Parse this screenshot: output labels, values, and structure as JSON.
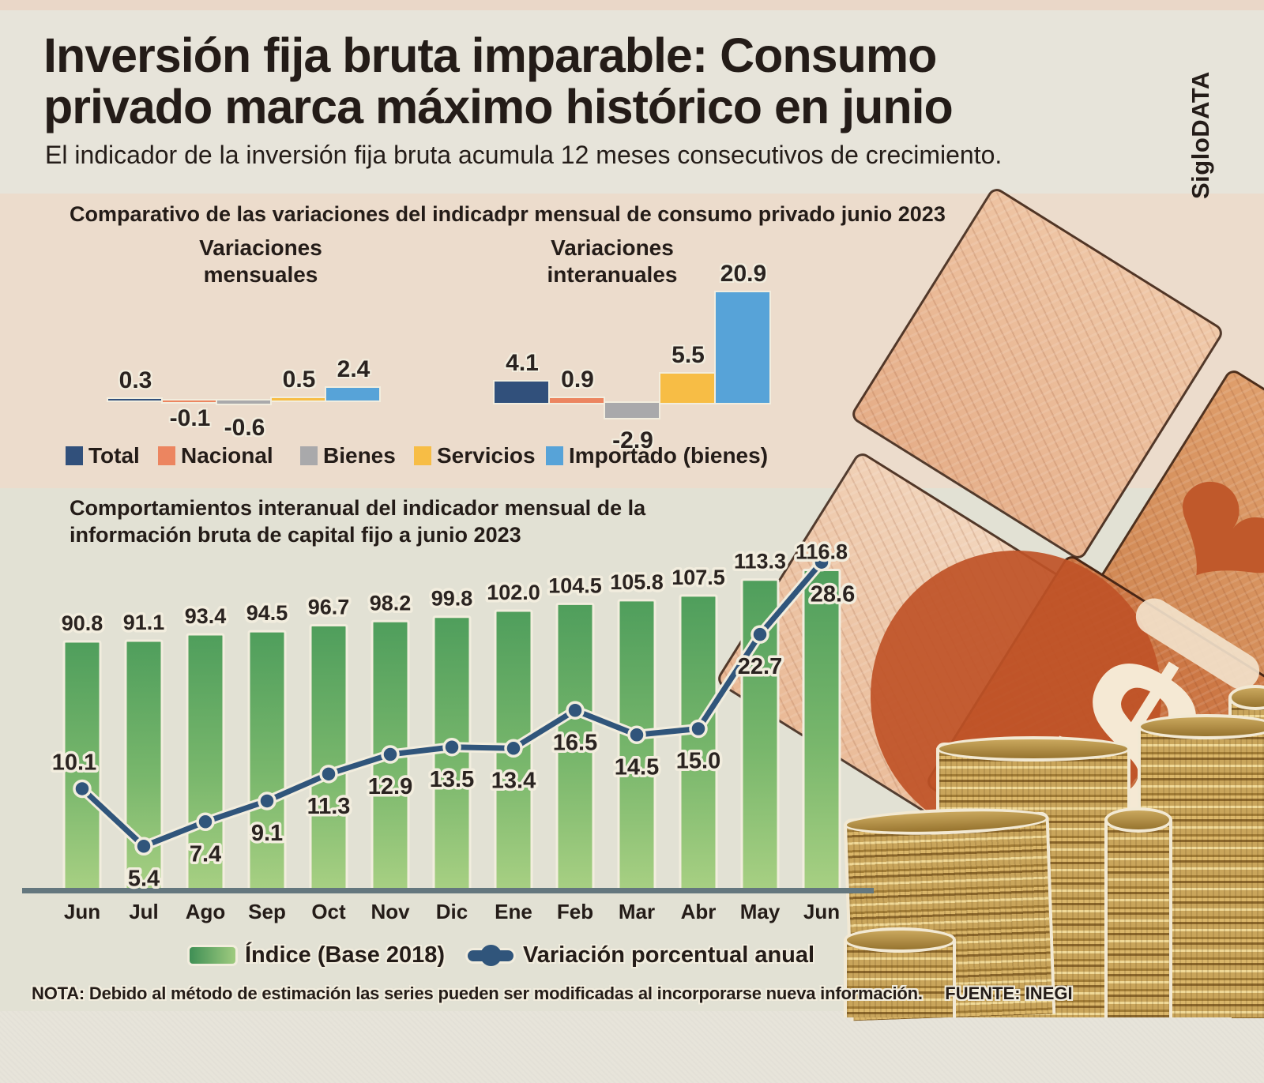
{
  "header": {
    "title_line1": "Inversión fija bruta imparable: Consumo",
    "title_line2": "privado marca máximo histórico en junio",
    "subtitle": "El indicador de la inversión fija bruta acumula 12 meses consecutivos de crecimiento.",
    "brand": "SigloDATA"
  },
  "chart_data": [
    {
      "type": "bar",
      "title": "Comparativo de las variaciones del indicadpr mensual de consumo privado junio 2023",
      "series": [
        {
          "name": "Total",
          "color": "#31507b"
        },
        {
          "name": "Nacional",
          "color": "#ec8560"
        },
        {
          "name": "Bienes",
          "color": "#a9a9ab"
        },
        {
          "name": "Servicios",
          "color": "#f7bd45"
        },
        {
          "name": "Importado (bienes)",
          "color": "#57a3d8"
        }
      ],
      "groups": [
        {
          "label1": "Variaciones",
          "label2": "mensuales",
          "values": [
            "0.3",
            "-0.1",
            "-0.6",
            "0.5",
            "2.4"
          ]
        },
        {
          "label1": "Variaciones",
          "label2": "interanuales",
          "values": [
            "4.1",
            "0.9",
            "-2.9",
            "5.5",
            "20.9"
          ]
        }
      ],
      "ylabel": "",
      "legend_position": "bottom",
      "grid": "off"
    },
    {
      "type": "bar+line",
      "title_line1": "Comportamientos interanual del indicador mensual de la",
      "title_line2": "información bruta de capital fijo a junio 2023",
      "categories": [
        "Jun",
        "Jul",
        "Ago",
        "Sep",
        "Oct",
        "Nov",
        "Dic",
        "Ene",
        "Feb",
        "Mar",
        "Abr",
        "May",
        "Jun"
      ],
      "series": [
        {
          "name": "Índice (Base 2018)",
          "type": "bar",
          "color_gradient": [
            "#4f9e5c",
            "#a8d083"
          ],
          "values": [
            "90.8",
            "91.1",
            "93.4",
            "94.5",
            "96.7",
            "98.2",
            "99.8",
            "102.0",
            "104.5",
            "105.8",
            "107.5",
            "113.3",
            "116.8"
          ]
        },
        {
          "name": "Variación porcentual anual",
          "type": "line",
          "color": "#30557b",
          "values": [
            "10.1",
            "5.4",
            "7.4",
            "9.1",
            "11.3",
            "12.9",
            "13.5",
            "13.4",
            "16.5",
            "14.5",
            "15.0",
            "22.7",
            "28.6"
          ]
        }
      ],
      "legend_position": "bottom",
      "grid": "off"
    }
  ],
  "footer": {
    "note": "NOTA: Debido al método de estimación las series pueden ser modificadas al incorporarse nueva información.",
    "source": "FUENTE: INEGI"
  },
  "decor": {
    "dollar_glyph": "$",
    "heart_glyph": "❤"
  }
}
